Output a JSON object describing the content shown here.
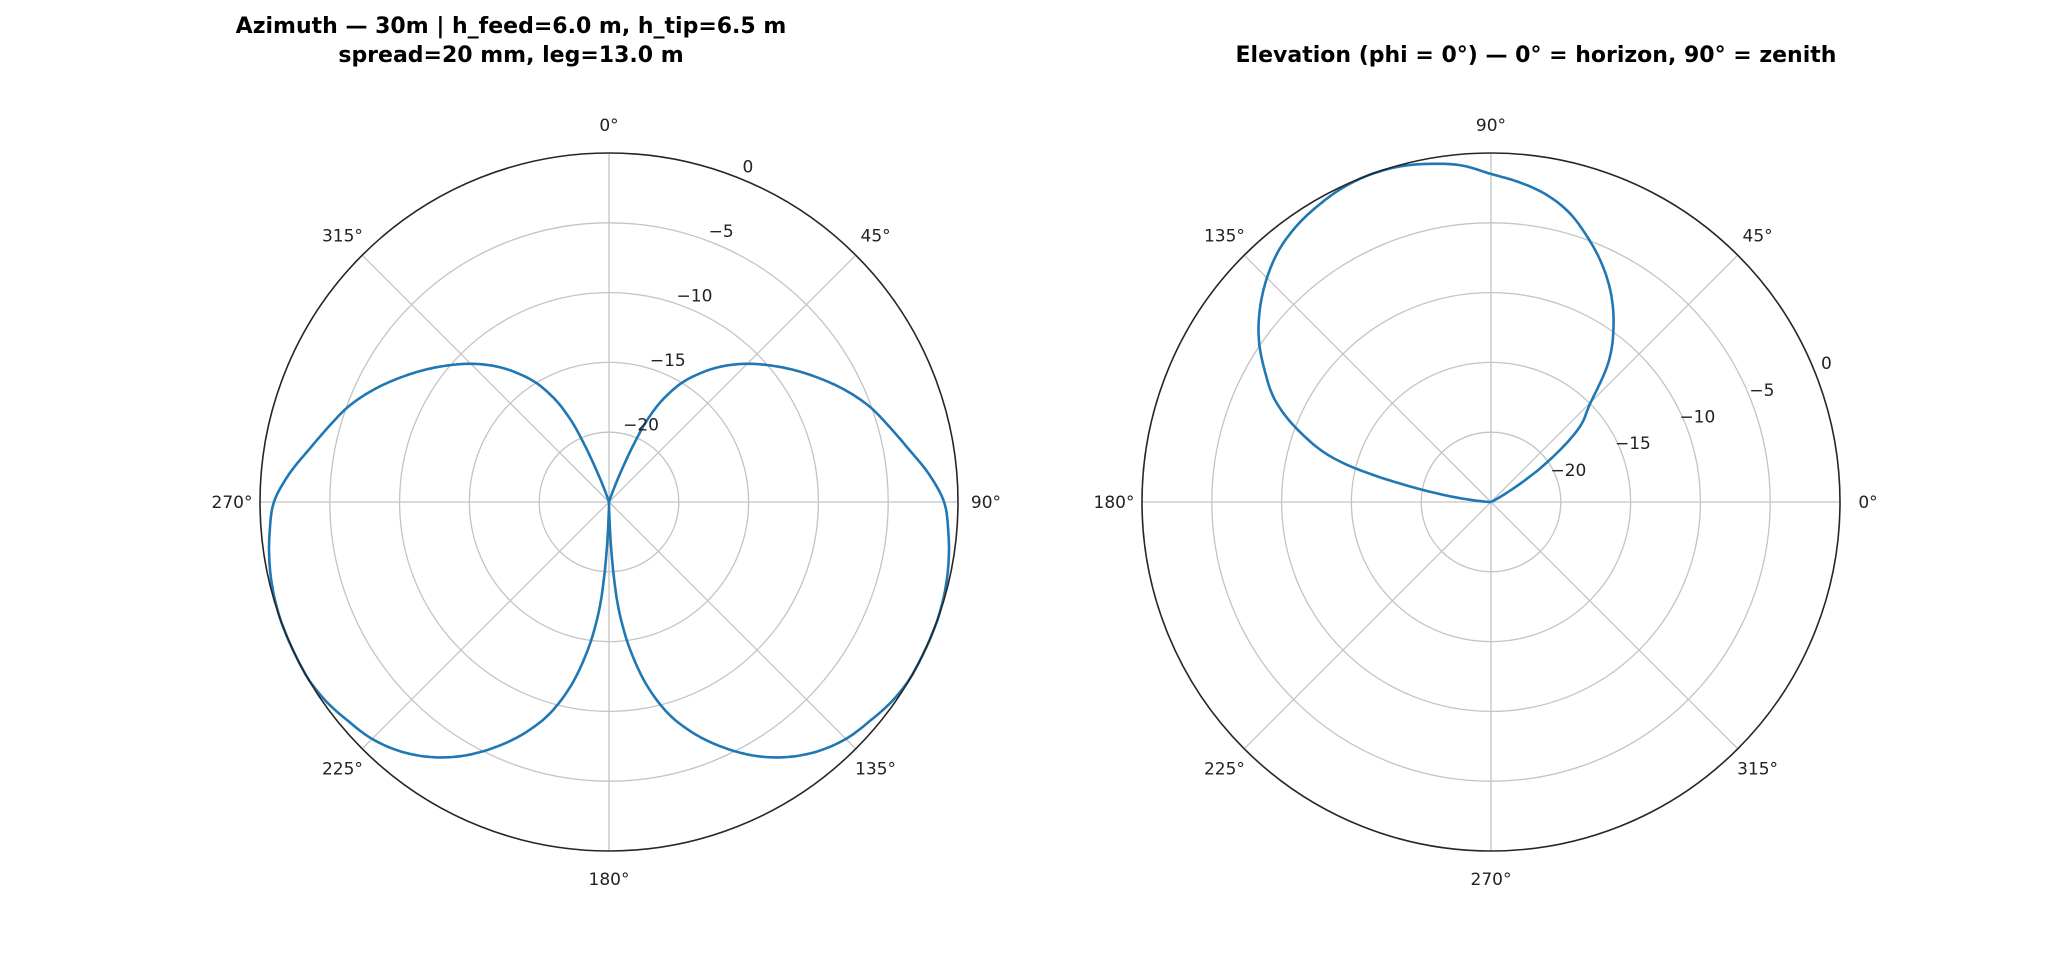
{
  "chart_data": [
    {
      "type": "line",
      "projection": "polar",
      "title": [
        "Azimuth — 30m  |  h_feed=6.0 m, h_tip=6.5 m",
        "spread=20 mm, leg=13.0 m"
      ],
      "theta_zero": "N",
      "theta_direction": "clockwise",
      "theta_ticks": [
        0,
        45,
        90,
        135,
        180,
        225,
        270,
        315
      ],
      "theta_tick_labels": [
        "0°",
        "45°",
        "90°",
        "135°",
        "180°",
        "225°",
        "270°",
        "315°"
      ],
      "r_ticks": [
        0,
        -5,
        -10,
        -15,
        -20
      ],
      "r_tick_labels": [
        "0",
        "−5",
        "−10",
        "−15",
        "−20"
      ],
      "rlim": [
        -25,
        0
      ],
      "grid": true,
      "color": "#1f77b4",
      "series": [
        {
          "theta_deg": [
            0,
            5,
            10,
            15,
            20,
            25,
            30,
            35,
            40,
            45,
            50,
            55,
            60,
            65,
            70,
            75,
            80,
            85,
            90,
            95,
            100,
            105,
            110,
            115,
            120,
            125,
            130,
            135,
            140,
            145,
            150,
            155,
            160,
            165,
            170,
            175,
            180,
            185,
            190,
            195,
            200,
            205,
            210,
            215,
            220,
            225,
            230,
            235,
            240,
            245,
            250,
            255,
            260,
            265,
            270,
            275,
            280,
            285,
            290,
            295,
            300,
            305,
            310,
            315,
            320,
            325,
            330,
            335,
            340,
            345,
            350,
            355,
            360
          ],
          "values_db": [
            -25,
            -25,
            -25,
            -25,
            -24,
            -18.5,
            -15.6,
            -13.8,
            -12.3,
            -11.0,
            -9.8,
            -8.6,
            -7.4,
            -6.2,
            -5.1,
            -4.2,
            -3.2,
            -2.0,
            -1.0,
            -0.6,
            -0.3,
            -0.1,
            0,
            0,
            0,
            -0.2,
            -0.6,
            -1.0,
            -1.7,
            -2.7,
            -4.0,
            -5.6,
            -7.4,
            -9.6,
            -12.8,
            -17.5,
            -25,
            -17.5,
            -12.8,
            -9.6,
            -7.4,
            -5.6,
            -4.0,
            -2.7,
            -1.7,
            -1.0,
            -0.6,
            -0.2,
            0,
            0,
            0,
            -0.1,
            -0.3,
            -0.6,
            -1.0,
            -2.0,
            -3.2,
            -4.2,
            -5.1,
            -6.2,
            -7.4,
            -8.6,
            -9.8,
            -11.0,
            -12.3,
            -13.8,
            -15.6,
            -18.5,
            -24,
            -25,
            -25,
            -25,
            -25
          ]
        }
      ]
    },
    {
      "type": "line",
      "projection": "polar",
      "title": [
        "Elevation (phi = 0°) — 0° = horizon, 90° = zenith"
      ],
      "theta_zero": "E",
      "theta_direction": "counterclockwise",
      "theta_ticks": [
        0,
        45,
        90,
        135,
        180,
        225,
        270,
        315
      ],
      "theta_tick_labels": [
        "0°",
        "45°",
        "90°",
        "135°",
        "180°",
        "225°",
        "270°",
        "315°"
      ],
      "r_ticks": [
        0,
        -5,
        -10,
        -15,
        -20
      ],
      "r_tick_labels": [
        "0",
        "−5",
        "−10",
        "−15",
        "−20"
      ],
      "rlim": [
        -25,
        0
      ],
      "grid": true,
      "color": "#1f77b4",
      "series": [
        {
          "theta_deg": [
            0,
            5,
            10,
            15,
            20,
            25,
            30,
            35,
            40,
            45,
            50,
            55,
            60,
            65,
            70,
            75,
            80,
            85,
            90,
            95,
            100,
            105,
            110,
            115,
            120,
            125,
            130,
            135,
            140,
            145,
            150,
            155,
            160,
            165,
            170,
            175,
            180
          ],
          "values_db": [
            -25,
            -25,
            -25,
            -25,
            -25,
            -25,
            -23.8,
            -20.3,
            -16.8,
            -14.9,
            -11.9,
            -9.7,
            -7.8,
            -6.2,
            -4.8,
            -3.5,
            -2.6,
            -2.0,
            -1.5,
            -0.8,
            -0.4,
            -0.1,
            0,
            -0.1,
            -0.4,
            -0.8,
            -1.4,
            -2.3,
            -3.4,
            -4.7,
            -6.3,
            -8.0,
            -10.5,
            -13.8,
            -20.1,
            -24,
            -25
          ]
        }
      ]
    }
  ]
}
